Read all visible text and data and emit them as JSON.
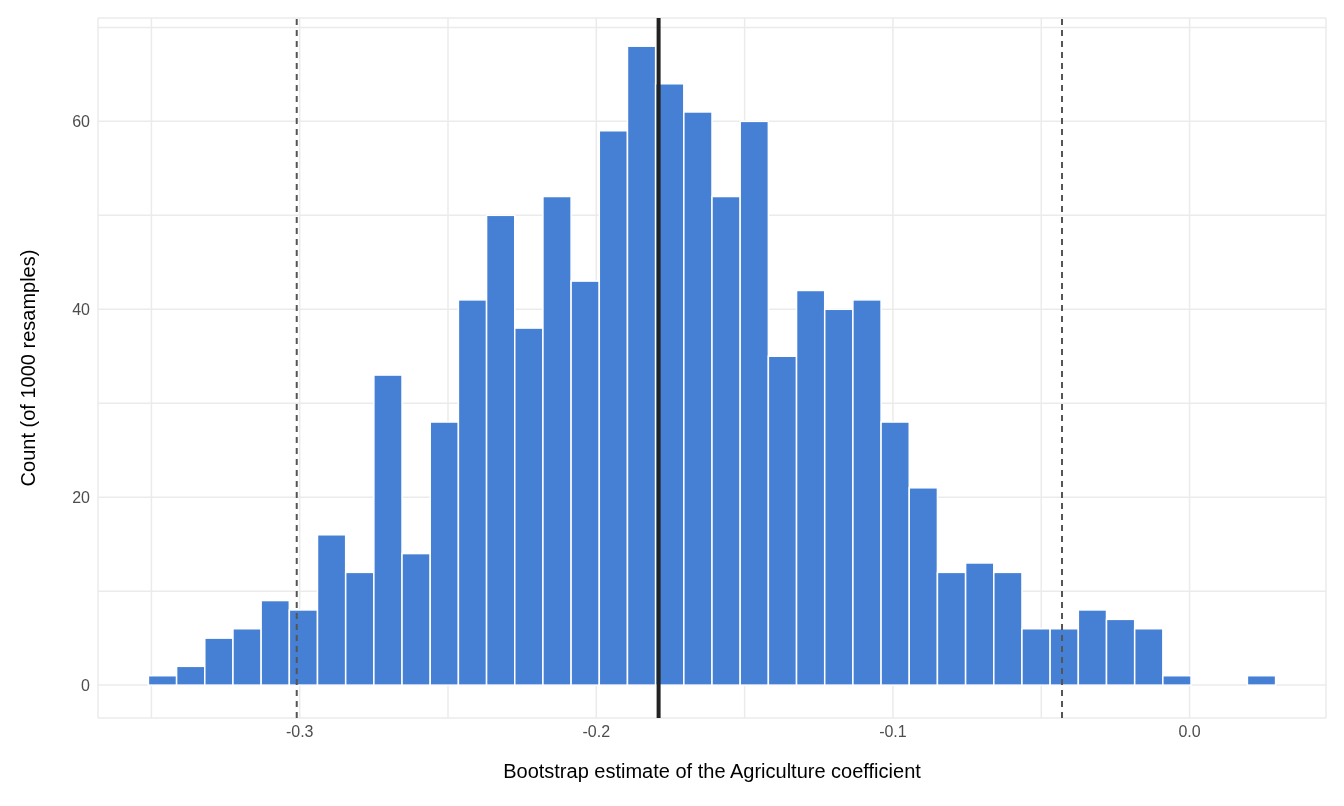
{
  "chart_data": {
    "type": "histogram",
    "xlabel": "Bootstrap estimate of the Agriculture coefficient",
    "ylabel": "Count (of 1000 resamples)",
    "bins": [
      -0.351,
      -0.3415,
      -0.332,
      -0.3225,
      -0.313,
      -0.3035,
      -0.294,
      -0.2845,
      -0.275,
      -0.2655,
      -0.256,
      -0.2465,
      -0.237,
      -0.2275,
      -0.218,
      -0.2085,
      -0.199,
      -0.1895,
      -0.18,
      -0.1705,
      -0.161,
      -0.1515,
      -0.142,
      -0.1325,
      -0.123,
      -0.1135,
      -0.104,
      -0.0945,
      -0.085,
      -0.0755,
      -0.066,
      -0.0565,
      -0.047,
      -0.0375,
      -0.028,
      -0.0185,
      -0.009,
      0.0005,
      0.01,
      0.0195,
      0.029
    ],
    "values": [
      1,
      2,
      5,
      6,
      9,
      8,
      16,
      12,
      33,
      14,
      28,
      41,
      50,
      38,
      52,
      43,
      59,
      68,
      64,
      61,
      52,
      60,
      35,
      42,
      40,
      41,
      28,
      21,
      12,
      13,
      12,
      6,
      6,
      8,
      7,
      6,
      1,
      0,
      0,
      1
    ],
    "color": "#4680d4",
    "xlim": [
      -0.368,
      0.046
    ],
    "xticks": [
      {
        "value": -0.35,
        "label": null
      },
      -0.3,
      {
        "value": -0.25,
        "label": null
      },
      -0.2,
      {
        "value": -0.15,
        "label": null
      },
      -0.1,
      {
        "value": -0.05,
        "label": null
      },
      {
        "value": 0,
        "label": "0.0"
      }
    ],
    "ylim": [
      -3.5,
      71
    ],
    "yticks": [
      0,
      {
        "value": 10,
        "label": null
      },
      20,
      {
        "value": 30,
        "label": null
      },
      40,
      {
        "value": 50,
        "label": null
      },
      60,
      {
        "value": 70,
        "label": null
      }
    ],
    "grid": true,
    "ref_lines": [
      {
        "axis": "x",
        "value": -0.301,
        "color": "#555555",
        "line_style": "dashed"
      },
      {
        "axis": "x",
        "value": -0.179,
        "color": "#222222",
        "line_style": "solid"
      },
      {
        "axis": "x",
        "value": -0.043,
        "color": "#555555",
        "line_style": "dashed"
      }
    ]
  }
}
